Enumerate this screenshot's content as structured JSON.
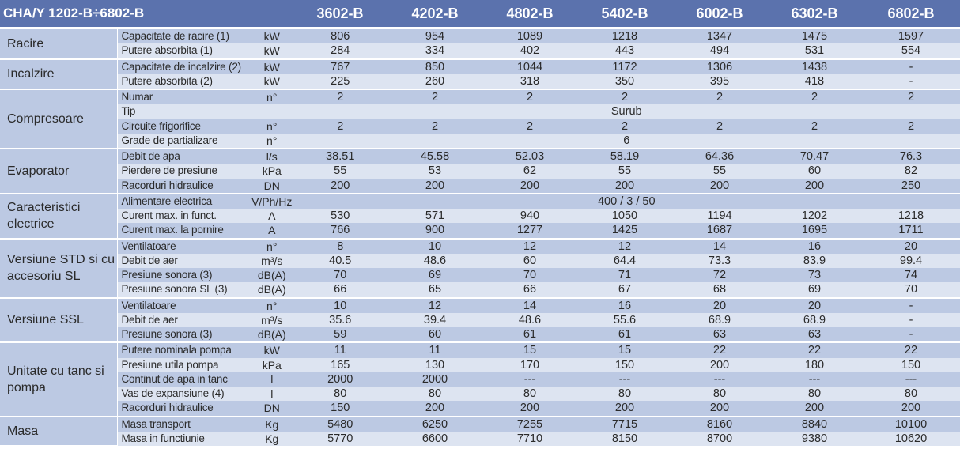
{
  "header": {
    "title": "CHA/Y 1202-B÷6802-B",
    "models": [
      "3602-B",
      "4202-B",
      "4802-B",
      "5402-B",
      "6002-B",
      "6302-B",
      "6802-B"
    ]
  },
  "sections": [
    {
      "name": "Racire",
      "rows": [
        {
          "label": "Capacitate de racire (1)",
          "unit": "kW",
          "values": [
            "806",
            "954",
            "1089",
            "1218",
            "1347",
            "1475",
            "1597"
          ]
        },
        {
          "label": "Putere absorbita (1)",
          "unit": "kW",
          "values": [
            "284",
            "334",
            "402",
            "443",
            "494",
            "531",
            "554"
          ]
        }
      ]
    },
    {
      "name": "Incalzire",
      "rows": [
        {
          "label": "Capacitate de incalzire (2)",
          "unit": "kW",
          "values": [
            "767",
            "850",
            "1044",
            "1172",
            "1306",
            "1438",
            "-"
          ]
        },
        {
          "label": "Putere absorbita (2)",
          "unit": "kW",
          "values": [
            "225",
            "260",
            "318",
            "350",
            "395",
            "418",
            "-"
          ]
        }
      ]
    },
    {
      "name": "Compresoare",
      "rows": [
        {
          "label": "Numar",
          "unit": "n°",
          "values": [
            "2",
            "2",
            "2",
            "2",
            "2",
            "2",
            "2"
          ]
        },
        {
          "label": "Tip",
          "unit": "",
          "span": "Surub"
        },
        {
          "label": "Circuite frigorifice",
          "unit": "n°",
          "values": [
            "2",
            "2",
            "2",
            "2",
            "2",
            "2",
            "2"
          ]
        },
        {
          "label": "Grade de partializare",
          "unit": "n°",
          "span": "6"
        }
      ]
    },
    {
      "name": "Evaporator",
      "rows": [
        {
          "label": "Debit de apa",
          "unit": "l/s",
          "values": [
            "38.51",
            "45.58",
            "52.03",
            "58.19",
            "64.36",
            "70.47",
            "76.3"
          ]
        },
        {
          "label": "Pierdere de presiune",
          "unit": "kPa",
          "values": [
            "55",
            "53",
            "62",
            "55",
            "55",
            "60",
            "82"
          ]
        },
        {
          "label": "Racorduri hidraulice",
          "unit": "DN",
          "values": [
            "200",
            "200",
            "200",
            "200",
            "200",
            "200",
            "250"
          ]
        }
      ]
    },
    {
      "name": "Caracteristici electrice",
      "rows": [
        {
          "label": "Alimentare electrica",
          "unit": "V/Ph/Hz",
          "span": "400 / 3 / 50"
        },
        {
          "label": "Curent max. in funct.",
          "unit": "A",
          "values": [
            "530",
            "571",
            "940",
            "1050",
            "1194",
            "1202",
            "1218"
          ]
        },
        {
          "label": "Curent max. la pornire",
          "unit": "A",
          "values": [
            "766",
            "900",
            "1277",
            "1425",
            "1687",
            "1695",
            "1711"
          ]
        }
      ]
    },
    {
      "name": "Versiune STD si cu accesoriu SL",
      "rows": [
        {
          "label": "Ventilatoare",
          "unit": "n°",
          "values": [
            "8",
            "10",
            "12",
            "12",
            "14",
            "16",
            "20"
          ]
        },
        {
          "label": "Debit de aer",
          "unit": "m³/s",
          "values": [
            "40.5",
            "48.6",
            "60",
            "64.4",
            "73.3",
            "83.9",
            "99.4"
          ]
        },
        {
          "label": "Presiune sonora (3)",
          "unit": "dB(A)",
          "values": [
            "70",
            "69",
            "70",
            "71",
            "72",
            "73",
            "74"
          ]
        },
        {
          "label": "Presiune sonora SL (3)",
          "unit": "dB(A)",
          "values": [
            "66",
            "65",
            "66",
            "67",
            "68",
            "69",
            "70"
          ]
        }
      ]
    },
    {
      "name": "Versiune SSL",
      "rows": [
        {
          "label": "Ventilatoare",
          "unit": "n°",
          "values": [
            "10",
            "12",
            "14",
            "16",
            "20",
            "20",
            "-"
          ]
        },
        {
          "label": "Debit de aer",
          "unit": "m³/s",
          "values": [
            "35.6",
            "39.4",
            "48.6",
            "55.6",
            "68.9",
            "68.9",
            "-"
          ]
        },
        {
          "label": "Presiune sonora (3)",
          "unit": "dB(A)",
          "values": [
            "59",
            "60",
            "61",
            "61",
            "63",
            "63",
            "-"
          ]
        }
      ]
    },
    {
      "name": "Unitate cu tanc si pompa",
      "rows": [
        {
          "label": "Putere nominala pompa",
          "unit": "kW",
          "values": [
            "11",
            "11",
            "15",
            "15",
            "22",
            "22",
            "22"
          ]
        },
        {
          "label": "Presiune utila pompa",
          "unit": "kPa",
          "values": [
            "165",
            "130",
            "170",
            "150",
            "200",
            "180",
            "150"
          ]
        },
        {
          "label": "Continut de apa in tanc",
          "unit": "l",
          "values": [
            "2000",
            "2000",
            "---",
            "---",
            "---",
            "---",
            "---"
          ]
        },
        {
          "label": "Vas de expansiune (4)",
          "unit": "l",
          "values": [
            "80",
            "80",
            "80",
            "80",
            "80",
            "80",
            "80"
          ]
        },
        {
          "label": "Racorduri hidraulice",
          "unit": "DN",
          "values": [
            "150",
            "200",
            "200",
            "200",
            "200",
            "200",
            "200"
          ]
        }
      ]
    },
    {
      "name": "Masa",
      "rows": [
        {
          "label": "Masa transport",
          "unit": "Kg",
          "values": [
            "5480",
            "6250",
            "7255",
            "7715",
            "8160",
            "8840",
            "10100"
          ]
        },
        {
          "label": "Masa in functiunie",
          "unit": "Kg",
          "values": [
            "5770",
            "6600",
            "7710",
            "8150",
            "8700",
            "9380",
            "10620"
          ]
        }
      ]
    }
  ]
}
